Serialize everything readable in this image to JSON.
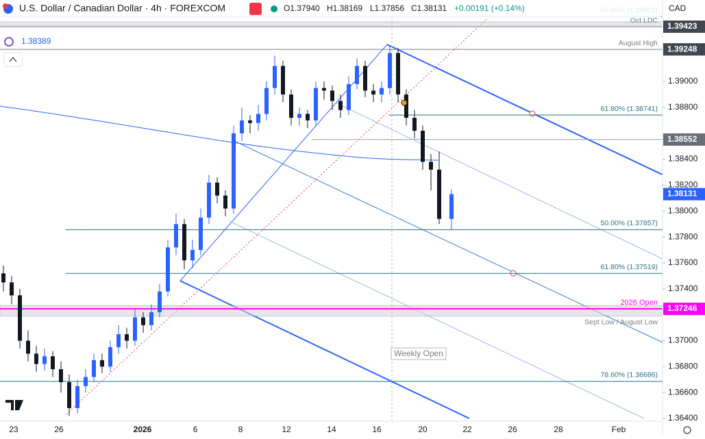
{
  "chart_data": {
    "type": "candlestick",
    "title": "U.S. Dollar / Canadian Dollar · 4h · FOREXCOM",
    "header_ohlc": [
      "O1.37940",
      "H1.38169",
      "L1.37856",
      "C1.38131"
    ],
    "header_change": "+0.00191 (+0.14%)",
    "currency": "CAD",
    "indicator_value": "1.38389",
    "annotation": "Weekly Open",
    "up_color": "#2962ff",
    "down_color": "#131722",
    "ylim": [
      1.36379,
      1.39629
    ],
    "yticks": [
      {
        "value": 1.364,
        "label": "1.36400"
      },
      {
        "value": 1.366,
        "label": "1.36600"
      },
      {
        "value": 1.368,
        "label": "1.36800"
      },
      {
        "value": 1.37,
        "label": "1.37000"
      },
      {
        "value": 1.374,
        "label": "1.37400"
      },
      {
        "value": 1.376,
        "label": "1.37600"
      },
      {
        "value": 1.378,
        "label": "1.37800"
      },
      {
        "value": 1.38,
        "label": "1.38000"
      },
      {
        "value": 1.382,
        "label": "1.38200"
      },
      {
        "value": 1.384,
        "label": "1.38400"
      },
      {
        "value": 1.388,
        "label": "1.38800"
      },
      {
        "value": 1.39,
        "label": "1.39000"
      }
    ],
    "x_labels": [
      "23",
      "26",
      "2026",
      "6",
      "8",
      "12",
      "14",
      "16",
      "20",
      "22",
      "26",
      "28",
      "Feb"
    ],
    "levels": [
      {
        "value": 1.39501,
        "label": "61.80% (1.39501)",
        "color": "#2b6f86"
      },
      {
        "value": 1.39423,
        "label": "Oct LDC",
        "color": "#787b86",
        "badge": true,
        "zone": [
          1.39423,
          1.3946
        ]
      },
      {
        "value": 1.39248,
        "label": "August High",
        "color": "#787b86",
        "badge": true
      },
      {
        "value": 1.38741,
        "label": "61.80% (1.38741)",
        "color": "#2b6f86"
      },
      {
        "value": 1.38552,
        "color": "#9598a1",
        "badge": true
      },
      {
        "value": 1.37857,
        "label": "50.00% (1.37857)",
        "color": "#2b6f86"
      },
      {
        "value": 1.37519,
        "label": "61.80% (1.37519)",
        "color": "#2b6f86"
      },
      {
        "value": 1.37246,
        "label": "2026 Open",
        "color": "#ff00ff",
        "badge": true,
        "zone": [
          1.3719,
          1.3727
        ],
        "zone_label": "Sept Low / August Low"
      },
      {
        "value": 1.36686,
        "label": "78.60% (1.36686)",
        "color": "#2b6f86"
      }
    ],
    "candles": [
      [
        1.3752,
        1.3758,
        1.3738,
        1.3745
      ],
      [
        1.3745,
        1.375,
        1.3728,
        1.3735
      ],
      [
        1.3735,
        1.374,
        1.3694,
        1.37
      ],
      [
        1.37,
        1.3708,
        1.3684,
        1.369
      ],
      [
        1.369,
        1.3696,
        1.3676,
        1.3682
      ],
      [
        1.3682,
        1.3694,
        1.3677,
        1.3688
      ],
      [
        1.3688,
        1.3692,
        1.3672,
        1.3678
      ],
      [
        1.3678,
        1.3684,
        1.366,
        1.3668
      ],
      [
        1.3668,
        1.3674,
        1.3642,
        1.3648
      ],
      [
        1.3648,
        1.367,
        1.3644,
        1.3665
      ],
      [
        1.3665,
        1.3678,
        1.366,
        1.3672
      ],
      [
        1.3672,
        1.369,
        1.3668,
        1.3685
      ],
      [
        1.3685,
        1.369,
        1.3675,
        1.368
      ],
      [
        1.368,
        1.37,
        1.3676,
        1.3695
      ],
      [
        1.3695,
        1.3712,
        1.369,
        1.3705
      ],
      [
        1.3705,
        1.371,
        1.3694,
        1.37
      ],
      [
        1.37,
        1.3724,
        1.3696,
        1.3718
      ],
      [
        1.3718,
        1.3722,
        1.3706,
        1.3712
      ],
      [
        1.3712,
        1.3728,
        1.3708,
        1.3722
      ],
      [
        1.3722,
        1.3744,
        1.3718,
        1.3738
      ],
      [
        1.3738,
        1.3778,
        1.3734,
        1.3772
      ],
      [
        1.3772,
        1.3798,
        1.3766,
        1.379
      ],
      [
        1.379,
        1.3794,
        1.3755,
        1.3762
      ],
      [
        1.3762,
        1.3778,
        1.3756,
        1.377
      ],
      [
        1.377,
        1.3802,
        1.3766,
        1.3795
      ],
      [
        1.3795,
        1.3828,
        1.379,
        1.3822
      ],
      [
        1.3822,
        1.3826,
        1.3806,
        1.3812
      ],
      [
        1.3812,
        1.3816,
        1.3796,
        1.3802
      ],
      [
        1.3802,
        1.3866,
        1.3798,
        1.386
      ],
      [
        1.386,
        1.388,
        1.3854,
        1.387
      ],
      [
        1.387,
        1.3874,
        1.386,
        1.3868
      ],
      [
        1.3868,
        1.3882,
        1.3862,
        1.3875
      ],
      [
        1.3875,
        1.39,
        1.387,
        1.3895
      ],
      [
        1.3895,
        1.392,
        1.389,
        1.3912
      ],
      [
        1.3912,
        1.3916,
        1.3884,
        1.389
      ],
      [
        1.389,
        1.3894,
        1.3866,
        1.3872
      ],
      [
        1.3872,
        1.388,
        1.3866,
        1.3875
      ],
      [
        1.3875,
        1.3878,
        1.3864,
        1.387
      ],
      [
        1.387,
        1.39,
        1.3866,
        1.3895
      ],
      [
        1.3895,
        1.39,
        1.3886,
        1.3893
      ],
      [
        1.3893,
        1.3897,
        1.3878,
        1.3885
      ],
      [
        1.3885,
        1.389,
        1.3872,
        1.3878
      ],
      [
        1.3878,
        1.3904,
        1.3874,
        1.3898
      ],
      [
        1.3898,
        1.3918,
        1.3894,
        1.3912
      ],
      [
        1.3912,
        1.3916,
        1.3888,
        1.3893
      ],
      [
        1.3893,
        1.3898,
        1.3884,
        1.389
      ],
      [
        1.389,
        1.39,
        1.3884,
        1.3895
      ],
      [
        1.3895,
        1.3928,
        1.389,
        1.3922
      ],
      [
        1.3922,
        1.3926,
        1.3884,
        1.389
      ],
      [
        1.389,
        1.3894,
        1.3866,
        1.3872
      ],
      [
        1.3872,
        1.3878,
        1.3856,
        1.3862
      ],
      [
        1.3862,
        1.3866,
        1.3832,
        1.3838
      ],
      [
        1.3838,
        1.3844,
        1.3816,
        1.3832
      ],
      [
        1.3832,
        1.3846,
        1.379,
        1.3794
      ],
      [
        1.3794,
        1.38169,
        1.37856,
        1.38131
      ]
    ]
  }
}
